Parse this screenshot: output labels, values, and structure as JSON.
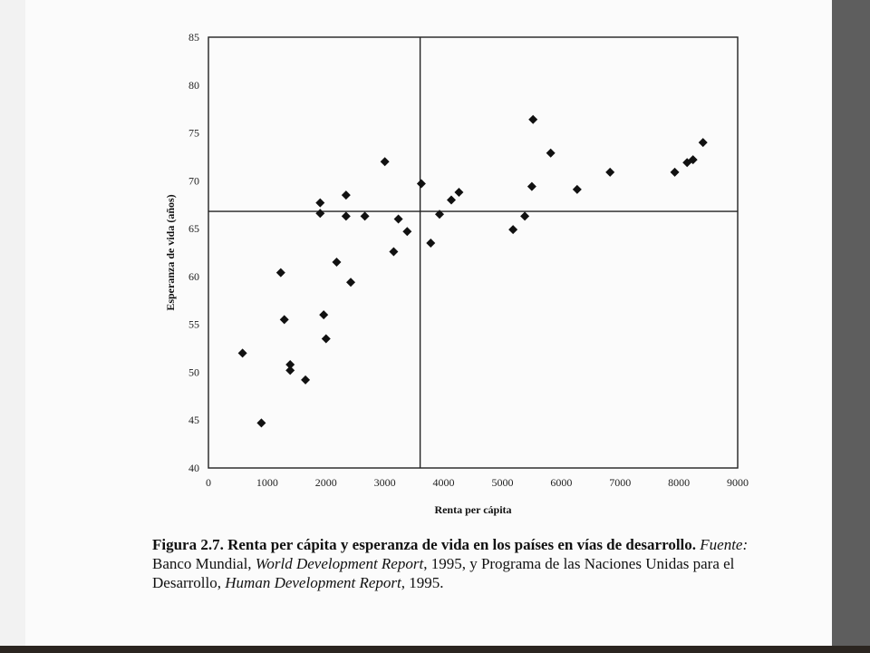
{
  "chart_data": {
    "type": "scatter",
    "xlabel": "Renta per cápita",
    "ylabel": "Esperanza de vida (años)",
    "xlim": [
      0,
      9000
    ],
    "ylim": [
      40,
      85
    ],
    "xticks": [
      "0",
      "1000",
      "2000",
      "3000",
      "4000",
      "5000",
      "6000",
      "7000",
      "8000",
      "9000"
    ],
    "yticks": [
      "40",
      "45",
      "50",
      "55",
      "60",
      "65",
      "70",
      "75",
      "80",
      "85"
    ],
    "reference_lines": {
      "x": 3600,
      "y": 66.8
    },
    "points": [
      [
        580,
        52.0
      ],
      [
        900,
        44.7
      ],
      [
        1230,
        60.4
      ],
      [
        1290,
        55.5
      ],
      [
        1390,
        50.8
      ],
      [
        1390,
        50.2
      ],
      [
        1650,
        49.2
      ],
      [
        1900,
        67.7
      ],
      [
        1900,
        66.6
      ],
      [
        1960,
        56.0
      ],
      [
        2000,
        53.5
      ],
      [
        2180,
        61.5
      ],
      [
        2340,
        68.5
      ],
      [
        2340,
        66.3
      ],
      [
        2420,
        59.4
      ],
      [
        2660,
        66.3
      ],
      [
        3000,
        72.0
      ],
      [
        3150,
        62.6
      ],
      [
        3230,
        66.0
      ],
      [
        3380,
        64.7
      ],
      [
        3620,
        69.7
      ],
      [
        3780,
        63.5
      ],
      [
        3930,
        66.5
      ],
      [
        4130,
        68.0
      ],
      [
        4260,
        68.8
      ],
      [
        5180,
        64.9
      ],
      [
        5380,
        66.3
      ],
      [
        5500,
        69.4
      ],
      [
        5520,
        76.4
      ],
      [
        5820,
        72.9
      ],
      [
        6270,
        69.1
      ],
      [
        6830,
        70.9
      ],
      [
        7930,
        70.9
      ],
      [
        8140,
        71.9
      ],
      [
        8240,
        72.2
      ],
      [
        8410,
        74.0
      ]
    ],
    "marker": "diamond",
    "colors": {
      "marker": "#111111",
      "frame": "#222222"
    }
  },
  "caption": {
    "title": "Figura 2.7. Renta per cápita y esperanza de vida en los países en vías de desarrollo.",
    "source_label": "Fuente:",
    "source_1": " Banco Mundial, ",
    "source_2": "World Development Report",
    "source_3": ", 1995, y Programa de las Naciones Unidas para el Desarrollo, ",
    "source_4": "Human Development Report",
    "source_5": ", 1995."
  }
}
